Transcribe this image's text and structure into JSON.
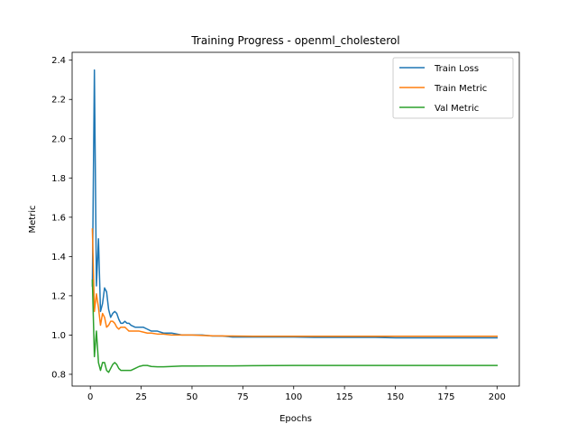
{
  "chart_data": {
    "type": "line",
    "title": "Training Progress - openml_cholesterol",
    "xlabel": "Epochs",
    "ylabel": "Metric",
    "xlim": [
      -8.95,
      210.95
    ],
    "ylim": [
      0.74,
      2.44
    ],
    "xticks": [
      0,
      25,
      50,
      75,
      100,
      125,
      150,
      175,
      200
    ],
    "yticks": [
      0.8,
      1.0,
      1.2,
      1.4,
      1.6,
      1.8,
      2.0,
      2.2,
      2.4
    ],
    "ytick_labels": [
      "0.8",
      "1.0",
      "1.2",
      "1.4",
      "1.6",
      "1.8",
      "2.0",
      "2.2",
      "2.4"
    ],
    "grid": false,
    "legend_position": "top-right",
    "series": [
      {
        "name": "Train Loss",
        "color": "#1f77b4",
        "x": [
          1,
          2,
          3,
          4,
          5,
          6,
          7,
          8,
          9,
          10,
          11,
          12,
          13,
          14,
          15,
          16,
          17,
          18,
          19,
          20,
          22,
          24,
          26,
          28,
          30,
          33,
          36,
          40,
          45,
          50,
          55,
          60,
          65,
          70,
          80,
          90,
          100,
          110,
          120,
          130,
          140,
          150,
          160,
          170,
          180,
          190,
          200
        ],
        "y": [
          1.25,
          2.35,
          1.25,
          1.49,
          1.12,
          1.16,
          1.24,
          1.22,
          1.13,
          1.09,
          1.11,
          1.12,
          1.11,
          1.08,
          1.06,
          1.06,
          1.07,
          1.06,
          1.06,
          1.05,
          1.04,
          1.04,
          1.04,
          1.03,
          1.02,
          1.02,
          1.01,
          1.01,
          1.0,
          1.0,
          1.0,
          0.995,
          0.995,
          0.99,
          0.99,
          0.99,
          0.99,
          0.988,
          0.988,
          0.988,
          0.988,
          0.986,
          0.986,
          0.986,
          0.986,
          0.986,
          0.986
        ]
      },
      {
        "name": "Train Metric",
        "color": "#ff7f0e",
        "x": [
          1,
          2,
          3,
          4,
          5,
          6,
          7,
          8,
          9,
          10,
          11,
          12,
          13,
          14,
          15,
          16,
          17,
          18,
          19,
          20,
          22,
          24,
          26,
          28,
          30,
          33,
          36,
          40,
          45,
          50,
          55,
          60,
          70,
          80,
          100,
          125,
          150,
          175,
          200
        ],
        "y": [
          1.54,
          1.12,
          1.21,
          1.14,
          1.05,
          1.11,
          1.09,
          1.04,
          1.05,
          1.07,
          1.07,
          1.06,
          1.04,
          1.03,
          1.04,
          1.04,
          1.04,
          1.03,
          1.02,
          1.02,
          1.02,
          1.02,
          1.015,
          1.01,
          1.01,
          1.005,
          1.005,
          1.0,
          1.0,
          1.0,
          0.998,
          0.996,
          0.995,
          0.994,
          0.994,
          0.994,
          0.994,
          0.994,
          0.994
        ]
      },
      {
        "name": "Val Metric",
        "color": "#2ca02c",
        "x": [
          1,
          2,
          3,
          4,
          5,
          6,
          7,
          8,
          9,
          10,
          11,
          12,
          13,
          14,
          15,
          16,
          17,
          18,
          20,
          22,
          24,
          26,
          28,
          30,
          33,
          36,
          40,
          45,
          50,
          60,
          70,
          80,
          100,
          125,
          150,
          175,
          200
        ],
        "y": [
          1.28,
          0.89,
          1.02,
          0.86,
          0.82,
          0.86,
          0.86,
          0.82,
          0.81,
          0.83,
          0.85,
          0.86,
          0.85,
          0.83,
          0.82,
          0.82,
          0.82,
          0.82,
          0.82,
          0.83,
          0.84,
          0.845,
          0.845,
          0.84,
          0.838,
          0.838,
          0.84,
          0.842,
          0.842,
          0.843,
          0.843,
          0.844,
          0.845,
          0.845,
          0.845,
          0.845,
          0.845
        ]
      }
    ]
  }
}
